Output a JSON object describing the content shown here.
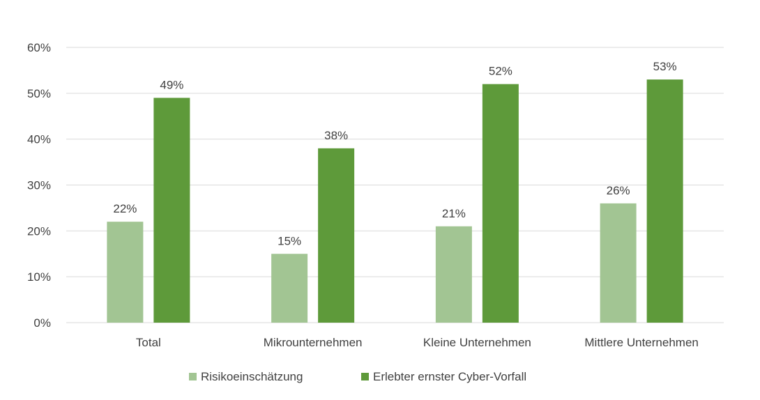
{
  "chart_data": {
    "type": "bar",
    "title": "",
    "xlabel": "",
    "ylabel": "",
    "ylim": [
      0,
      60
    ],
    "yticks": [
      0,
      10,
      20,
      30,
      40,
      50,
      60
    ],
    "ytick_labels": [
      "0%",
      "10%",
      "20%",
      "30%",
      "40%",
      "50%",
      "60%"
    ],
    "value_suffix": "%",
    "grid": true,
    "legend_position": "bottom",
    "categories": [
      "Total",
      "Mikrounternehmen",
      "Kleine Unternehmen",
      "Mittlere Unternehmen"
    ],
    "series": [
      {
        "name": "Risikoeinschätzung",
        "color": "#a2c593",
        "values": [
          22,
          15,
          21,
          26
        ]
      },
      {
        "name": "Erlebter ernster Cyber-Vorfall",
        "color": "#5e9a3a",
        "values": [
          49,
          38,
          52,
          53
        ]
      }
    ]
  },
  "colors": {
    "gridline": "#d9d9d9",
    "axis_text": "#404040",
    "label_text": "#404040"
  }
}
